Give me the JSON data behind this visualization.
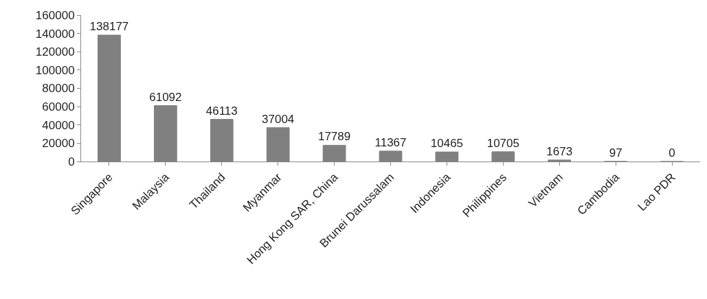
{
  "chart_data": {
    "type": "bar",
    "categories": [
      "Singapore",
      "Malaysia",
      "Thailand",
      "Myanmar",
      "Hong Kong SAR, China",
      "Brunei Darussalam",
      "Indonesia",
      "Philippines",
      "Vietnam",
      "Cambodia",
      "Lao PDR"
    ],
    "values": [
      138177,
      61092,
      46113,
      37004,
      17789,
      11367,
      10465,
      10705,
      1673,
      97,
      0
    ],
    "color": "#808080",
    "ylim": [
      0,
      160000
    ],
    "yticks": [
      0,
      20000,
      40000,
      60000,
      80000,
      100000,
      120000,
      140000,
      160000
    ],
    "data_labels": true
  }
}
